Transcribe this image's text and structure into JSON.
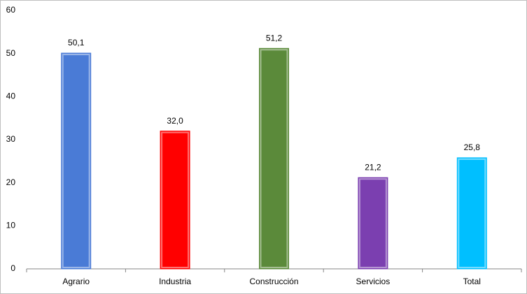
{
  "chart_data": {
    "type": "bar",
    "categories": [
      "Agrario",
      "Industria",
      "Construcción",
      "Servicios",
      "Total"
    ],
    "values": [
      50.1,
      32.0,
      51.2,
      21.2,
      25.8
    ],
    "value_labels": [
      "50,1",
      "32,0",
      "51,2",
      "21,2",
      "25,8"
    ],
    "colors": [
      "#4a7bd6",
      "#ff0000",
      "#5b8a3a",
      "#7b3fb0",
      "#00bfff"
    ],
    "ylim": [
      0,
      60
    ],
    "yticks": [
      0,
      10,
      20,
      30,
      40,
      50,
      60
    ],
    "grid": false
  }
}
